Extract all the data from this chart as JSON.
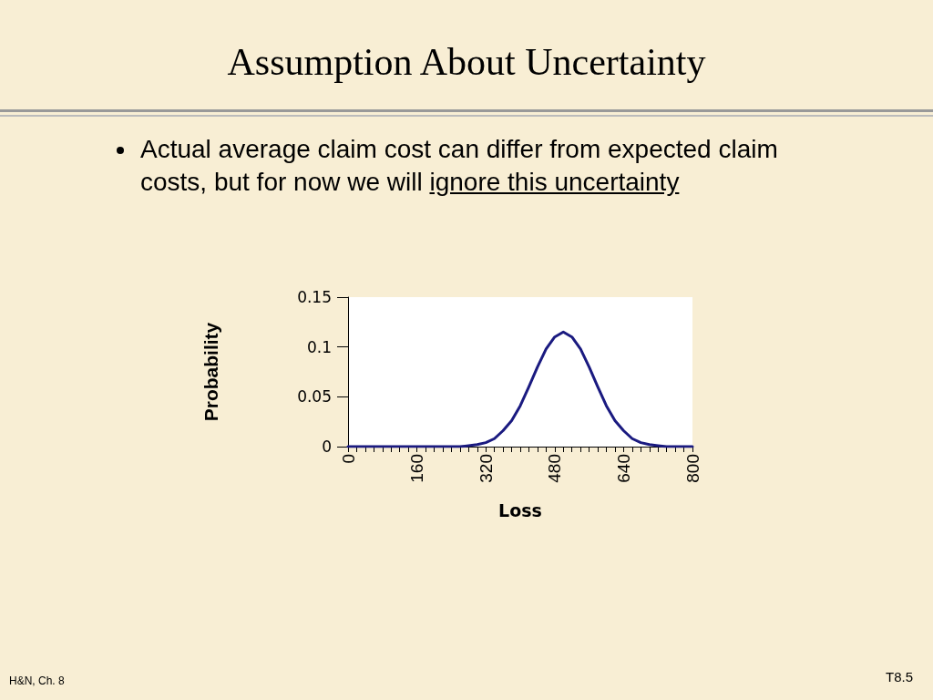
{
  "chart_data": {
    "type": "line",
    "title": "Assumption About Uncertainty",
    "xlabel": "Loss",
    "ylabel": "Probability",
    "annotations": [
      "Actual average claim cost can differ from expected claim costs, but for now we will",
      "ignore this uncertainty",
      "H&N, Ch. 8",
      "T8.5"
    ],
    "x": [
      0,
      20,
      40,
      60,
      80,
      100,
      120,
      140,
      160,
      180,
      200,
      220,
      240,
      260,
      280,
      300,
      320,
      340,
      360,
      380,
      400,
      420,
      440,
      460,
      480,
      500,
      520,
      540,
      560,
      580,
      600,
      620,
      640,
      660,
      680,
      700,
      720,
      740,
      760,
      780,
      800
    ],
    "series": [
      {
        "color": "#1a1a80",
        "values": [
          0,
          0,
          0,
          0,
          0,
          0,
          0,
          0,
          0,
          0,
          0,
          0,
          0,
          0,
          0.001,
          0.002,
          0.004,
          0.008,
          0.016,
          0.026,
          0.041,
          0.06,
          0.08,
          0.098,
          0.11,
          0.115,
          0.11,
          0.098,
          0.08,
          0.06,
          0.041,
          0.026,
          0.016,
          0.008,
          0.004,
          0.002,
          0.001,
          0,
          0,
          0,
          0
        ]
      }
    ],
    "xlim": [
      0,
      800
    ],
    "xticks": [
      0,
      {
        "value": 20,
        "label": null
      },
      {
        "value": 40,
        "label": null
      },
      {
        "value": 60,
        "label": null
      },
      {
        "value": 80,
        "label": null
      },
      {
        "value": 100,
        "label": null
      },
      {
        "value": 120,
        "label": null
      },
      {
        "value": 140,
        "label": null
      },
      160,
      {
        "value": 180,
        "label": null
      },
      {
        "value": 200,
        "label": null
      },
      {
        "value": 220,
        "label": null
      },
      {
        "value": 240,
        "label": null
      },
      {
        "value": 260,
        "label": null
      },
      {
        "value": 280,
        "label": null
      },
      {
        "value": 300,
        "label": null
      },
      320,
      {
        "value": 340,
        "label": null
      },
      {
        "value": 360,
        "label": null
      },
      {
        "value": 380,
        "label": null
      },
      {
        "value": 400,
        "label": null
      },
      {
        "value": 420,
        "label": null
      },
      {
        "value": 440,
        "label": null
      },
      {
        "value": 460,
        "label": null
      },
      480,
      {
        "value": 500,
        "label": null
      },
      {
        "value": 520,
        "label": null
      },
      {
        "value": 540,
        "label": null
      },
      {
        "value": 560,
        "label": null
      },
      {
        "value": 580,
        "label": null
      },
      {
        "value": 600,
        "label": null
      },
      {
        "value": 620,
        "label": null
      },
      640,
      {
        "value": 660,
        "label": null
      },
      {
        "value": 680,
        "label": null
      },
      {
        "value": 700,
        "label": null
      },
      {
        "value": 720,
        "label": null
      },
      {
        "value": 740,
        "label": null
      },
      {
        "value": 760,
        "label": null
      },
      {
        "value": 780,
        "label": null
      },
      800
    ],
    "ylim": [
      0,
      0.15
    ],
    "yticks": [
      0,
      0.05,
      0.1,
      0.15
    ],
    "grid": false,
    "marker": "none",
    "line_style": "solid"
  }
}
